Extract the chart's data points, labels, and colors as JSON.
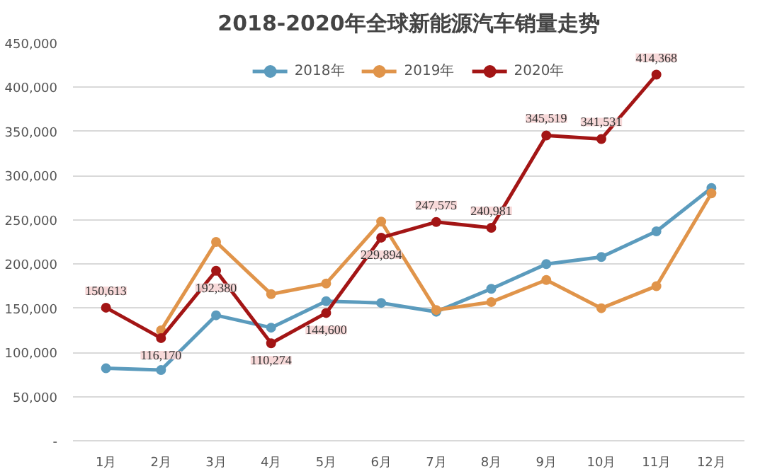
{
  "chart_data": {
    "type": "line",
    "title": "2018-2020年全球新能源汽车销量走势",
    "categories": [
      "1月",
      "2月",
      "3月",
      "4月",
      "5月",
      "6月",
      "7月",
      "8月",
      "9月",
      "10月",
      "11月",
      "12月"
    ],
    "series": [
      {
        "name": "2018年",
        "color": "#5b9bbd",
        "values": [
          82000,
          80000,
          142000,
          128000,
          158000,
          156000,
          146000,
          172000,
          200000,
          208000,
          237000,
          286000
        ]
      },
      {
        "name": "2019年",
        "color": "#e0944a",
        "values": [
          null,
          125000,
          225000,
          166000,
          178000,
          248000,
          148000,
          157000,
          182000,
          150000,
          175000,
          280000
        ]
      },
      {
        "name": "2020年",
        "color": "#a31515",
        "values": [
          150613,
          116170,
          192380,
          110274,
          144600,
          229894,
          247575,
          240981,
          345519,
          341531,
          414368,
          null
        ],
        "value_labels": [
          "150,613",
          "116,170",
          "192,380",
          "110,274",
          "144,600",
          "229,894",
          "247,575",
          "240,981",
          "345,519",
          "341,531",
          "414,368",
          null
        ]
      }
    ],
    "ylim": [
      0,
      450000
    ],
    "yticks": [
      {
        "value": 0,
        "label": "-"
      },
      {
        "value": 50000,
        "label": "50,000"
      },
      {
        "value": 100000,
        "label": "100,000"
      },
      {
        "value": 150000,
        "label": "150,000"
      },
      {
        "value": 200000,
        "label": "200,000"
      },
      {
        "value": 250000,
        "label": "250,000"
      },
      {
        "value": 300000,
        "label": "300,000"
      },
      {
        "value": 350000,
        "label": "350,000"
      },
      {
        "value": 400000,
        "label": "400,000"
      },
      {
        "value": 450000,
        "label": "450,000"
      }
    ],
    "grid": "y",
    "legend": "top",
    "marker": "circle",
    "line_style": "solid"
  }
}
